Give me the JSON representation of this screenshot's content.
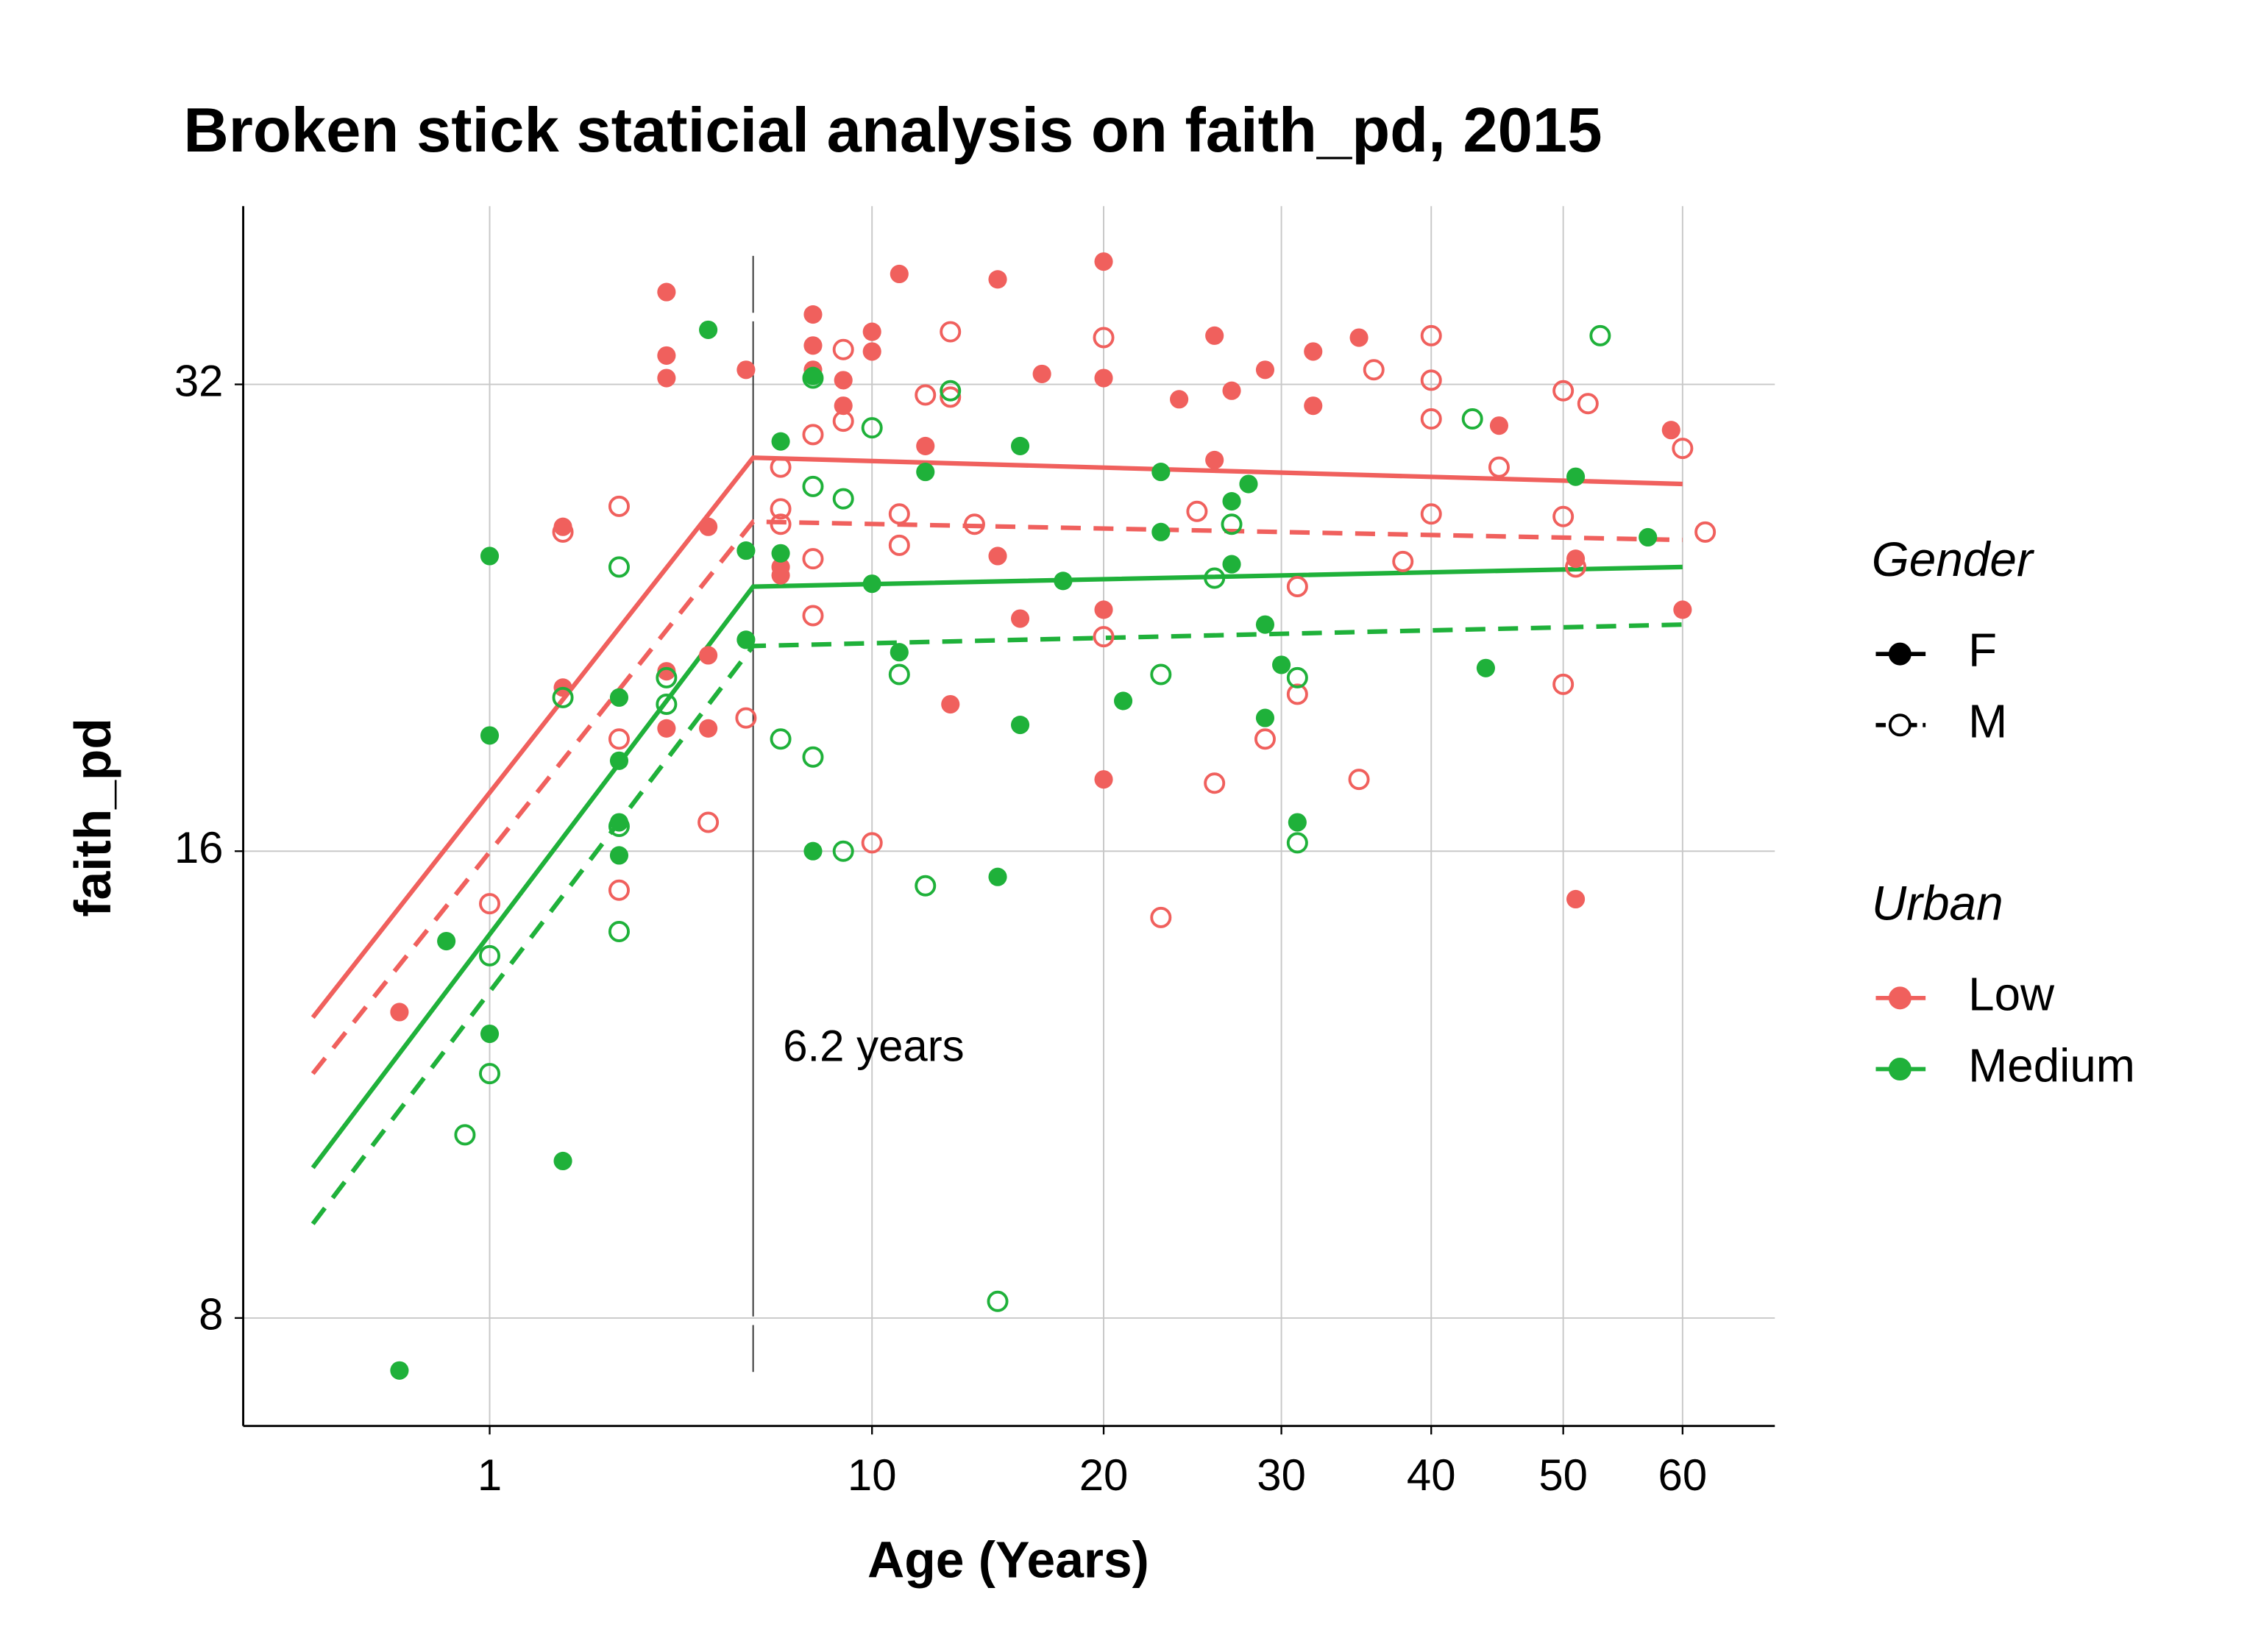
{
  "chart_data": {
    "type": "scatter",
    "title": "Broken stick staticial analysis on faith_pd, 2015",
    "x_label": "Age (Years)",
    "y_label": "faith_pd",
    "x_scale": "sqrt",
    "y_scale": "log2",
    "grid": true,
    "xlim": [
      0,
      62
    ],
    "ylim": [
      7.4,
      38.4
    ],
    "xticks": [
      1,
      10,
      20,
      30,
      40,
      50,
      60
    ],
    "yticks": [
      8,
      16,
      32
    ],
    "series": [
      {
        "color": "#f0605d",
        "filled": true,
        "x": [
          4,
          8,
          15,
          11,
          20,
          10,
          10,
          8,
          8,
          4,
          4,
          6,
          17,
          20,
          26,
          29,
          32,
          35,
          24,
          27,
          32,
          9,
          9,
          12,
          26,
          45,
          59,
          2,
          5,
          7,
          7,
          15,
          16,
          20,
          51,
          60,
          2,
          4,
          5,
          4,
          5,
          13,
          20,
          51,
          0.24
        ],
        "values": [
          36.7,
          35.5,
          37.4,
          37.7,
          38.4,
          34.6,
          33.6,
          33.9,
          32.7,
          33.4,
          32.3,
          32.7,
          32.5,
          32.3,
          34.4,
          32.7,
          33.6,
          34.3,
          31.3,
          31.7,
          31.0,
          31.0,
          32.2,
          29.2,
          28.6,
          30.1,
          29.9,
          25.9,
          25.9,
          24.4,
          24.1,
          24.8,
          22.6,
          22.9,
          24.7,
          22.9,
          20.4,
          20.9,
          21.4,
          19.2,
          19.2,
          19.9,
          17.8,
          14.9,
          12.6
        ]
      },
      {
        "color": "#f0605d",
        "filled": false,
        "x": [
          3,
          2,
          13,
          9,
          20,
          40,
          36,
          40,
          12,
          13,
          50,
          52,
          9,
          8,
          40,
          7,
          60,
          45,
          7,
          11,
          7,
          14,
          25,
          50,
          40,
          62,
          11,
          8,
          38,
          51,
          8,
          31,
          20,
          31,
          50,
          3,
          6,
          29,
          5,
          26,
          35,
          10,
          1,
          3,
          23
        ],
        "values": [
          26.7,
          25.7,
          34.6,
          33.7,
          34.3,
          34.4,
          32.7,
          32.2,
          31.5,
          31.4,
          31.7,
          31.1,
          30.3,
          29.7,
          30.4,
          28.3,
          29.1,
          28.3,
          26.6,
          26.4,
          26.0,
          26.0,
          26.5,
          26.3,
          26.4,
          25.7,
          25.2,
          24.7,
          24.6,
          24.4,
          22.7,
          23.7,
          22.0,
          20.2,
          20.5,
          18.9,
          19.5,
          18.9,
          16.7,
          17.7,
          17.8,
          16.2,
          14.8,
          15.1,
          14.5
        ]
      },
      {
        "color": "#1fb13a",
        "filled": true,
        "x": [
          5,
          8,
          7,
          16,
          12,
          23,
          28,
          27,
          51,
          1,
          6,
          7,
          23,
          57,
          27,
          10,
          18,
          6,
          11,
          29,
          30,
          44,
          3,
          21,
          29,
          16,
          1,
          3,
          3,
          31,
          8,
          3,
          15,
          0.57,
          1,
          2,
          0.24
        ],
        "values": [
          34.7,
          32.4,
          29.4,
          29.2,
          28.1,
          28.1,
          27.6,
          26.9,
          27.9,
          24.8,
          25.0,
          24.9,
          25.7,
          25.5,
          24.5,
          23.8,
          23.9,
          21.9,
          21.5,
          22.4,
          21.1,
          21.0,
          20.1,
          20.0,
          19.5,
          19.3,
          19.0,
          18.3,
          16.7,
          16.7,
          16.0,
          15.9,
          15.4,
          14.0,
          12.2,
          10.1,
          7.4
        ]
      },
      {
        "color": "#1fb13a",
        "filled": false,
        "x": [
          53,
          8,
          13,
          10,
          43,
          8,
          9,
          27,
          3,
          26,
          4,
          2,
          4,
          11,
          23,
          31,
          7,
          8,
          3,
          9,
          31,
          12,
          3,
          1,
          1,
          0.74,
          15
        ],
        "values": [
          34.4,
          32.3,
          31.7,
          30.0,
          30.4,
          27.5,
          27.0,
          26.0,
          24.4,
          24.0,
          20.7,
          20.1,
          19.9,
          20.8,
          20.8,
          20.7,
          18.9,
          18.4,
          16.6,
          16.0,
          16.2,
          15.2,
          14.2,
          13.7,
          11.5,
          10.5,
          8.2
        ]
      }
    ],
    "fits": [
      {
        "color": "#f0605d",
        "dashed": false,
        "x": [
          0,
          6.2,
          60
        ],
        "values": [
          12.5,
          28.7,
          27.6
        ]
      },
      {
        "color": "#f0605d",
        "dashed": true,
        "x": [
          0,
          6.2,
          60
        ],
        "values": [
          11.5,
          26.1,
          25.4
        ]
      },
      {
        "color": "#1fb13a",
        "dashed": false,
        "x": [
          0,
          6.2,
          60
        ],
        "values": [
          10.0,
          23.7,
          24.4
        ]
      },
      {
        "color": "#1fb13a",
        "dashed": true,
        "x": [
          0,
          6.2,
          60
        ],
        "values": [
          9.2,
          21.7,
          22.4
        ]
      }
    ],
    "annotation": {
      "text": "6.2 years",
      "x": 6.2
    },
    "legends": [
      {
        "title": "Gender",
        "items": [
          {
            "label": "F",
            "filled": true,
            "dashed": false
          },
          {
            "label": "M",
            "filled": false,
            "dashed": true
          }
        ]
      },
      {
        "title": "Urban",
        "items": [
          {
            "label": "Low",
            "color": "#f0605d"
          },
          {
            "label": "Medium",
            "color": "#1fb13a"
          }
        ]
      }
    ]
  }
}
